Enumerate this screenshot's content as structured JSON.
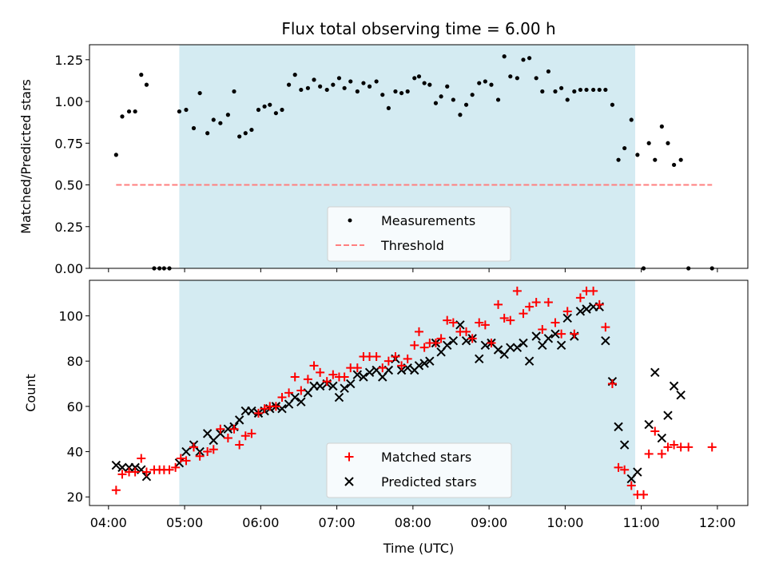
{
  "figure": {
    "title": "Flux total observing time = 6.00 h",
    "xlabel": "Time (UTC)",
    "shade_color": "#add8e6",
    "shade_range_hours": [
      4.93,
      10.92
    ]
  },
  "chart_data": [
    {
      "type": "scatter",
      "panel": "top",
      "ylabel": "Matched/Predicted stars",
      "xlim": [
        3.75,
        12.4
      ],
      "ylim": [
        0,
        1.34
      ],
      "yticks": [
        0.0,
        0.25,
        0.5,
        0.75,
        1.0,
        1.25
      ],
      "ytick_labels": [
        "0.00",
        "0.25",
        "0.50",
        "0.75",
        "1.00",
        "1.25"
      ],
      "legend_position": "lower-center",
      "series": [
        {
          "name": "Measurements",
          "color": "#000000",
          "marker": "dot",
          "x": [
            4.1,
            4.18,
            4.27,
            4.35,
            4.43,
            4.5,
            4.6,
            4.67,
            4.73,
            4.8,
            4.93,
            5.02,
            5.12,
            5.2,
            5.3,
            5.38,
            5.47,
            5.57,
            5.65,
            5.72,
            5.8,
            5.88,
            5.97,
            6.05,
            6.12,
            6.2,
            6.28,
            6.37,
            6.45,
            6.53,
            6.62,
            6.7,
            6.78,
            6.87,
            6.95,
            7.03,
            7.1,
            7.18,
            7.27,
            7.35,
            7.43,
            7.52,
            7.6,
            7.68,
            7.77,
            7.85,
            7.93,
            8.02,
            8.08,
            8.15,
            8.22,
            8.3,
            8.37,
            8.45,
            8.53,
            8.62,
            8.7,
            8.78,
            8.87,
            8.95,
            9.03,
            9.12,
            9.2,
            9.28,
            9.37,
            9.45,
            9.53,
            9.62,
            9.7,
            9.78,
            9.87,
            9.95,
            10.03,
            10.12,
            10.2,
            10.28,
            10.37,
            10.45,
            10.53,
            10.62,
            10.7,
            10.78,
            10.87,
            10.95,
            11.03,
            11.1,
            11.18,
            11.27,
            11.35,
            11.43,
            11.52,
            11.62,
            11.93
          ],
          "y": [
            0.68,
            0.91,
            0.94,
            0.94,
            1.16,
            1.1,
            0.0,
            0.0,
            0.0,
            0.0,
            0.94,
            0.95,
            0.84,
            1.05,
            0.81,
            0.89,
            0.87,
            0.92,
            1.06,
            0.79,
            0.81,
            0.83,
            0.95,
            0.97,
            0.98,
            0.93,
            0.95,
            1.1,
            1.16,
            1.07,
            1.08,
            1.13,
            1.09,
            1.07,
            1.1,
            1.14,
            1.08,
            1.12,
            1.06,
            1.11,
            1.09,
            1.12,
            1.04,
            0.96,
            1.06,
            1.05,
            1.06,
            1.14,
            1.15,
            1.11,
            1.1,
            0.99,
            1.03,
            1.09,
            1.01,
            0.92,
            0.98,
            1.04,
            1.11,
            1.12,
            1.1,
            1.01,
            1.27,
            1.15,
            1.14,
            1.25,
            1.26,
            1.14,
            1.06,
            1.18,
            1.06,
            1.08,
            1.01,
            1.06,
            1.07,
            1.07,
            1.07,
            1.07,
            1.07,
            0.98,
            0.65,
            0.72,
            0.89,
            0.68,
            0.0,
            0.75,
            0.65,
            0.85,
            0.75,
            0.62,
            0.65,
            0.0,
            0.0
          ]
        },
        {
          "name": "Threshold",
          "color": "#ff7f7f",
          "style": "dashed",
          "x": [
            4.1,
            11.93
          ],
          "y": [
            0.5,
            0.5
          ]
        }
      ]
    },
    {
      "type": "scatter",
      "panel": "bottom",
      "ylabel": "Count",
      "xlim": [
        3.75,
        12.4
      ],
      "ylim": [
        16.2,
        115.7
      ],
      "yticks": [
        20,
        40,
        60,
        80,
        100
      ],
      "ytick_labels": [
        "20",
        "40",
        "60",
        "80",
        "100"
      ],
      "xticks": [
        4,
        5,
        6,
        7,
        8,
        9,
        10,
        11,
        12
      ],
      "xtick_labels": [
        "04:00",
        "05:00",
        "06:00",
        "07:00",
        "08:00",
        "09:00",
        "10:00",
        "11:00",
        "12:00"
      ],
      "legend_position": "lower-center",
      "series": [
        {
          "name": "Matched stars",
          "color": "#ff0000",
          "marker": "plus",
          "x": [
            4.1,
            4.18,
            4.27,
            4.35,
            4.43,
            4.5,
            4.6,
            4.67,
            4.73,
            4.8,
            4.88,
            4.95,
            5.02,
            5.12,
            5.2,
            5.3,
            5.38,
            5.47,
            5.57,
            5.65,
            5.72,
            5.8,
            5.88,
            5.97,
            6.05,
            6.12,
            6.2,
            6.28,
            6.37,
            6.45,
            6.53,
            6.62,
            6.7,
            6.78,
            6.87,
            6.95,
            7.03,
            7.1,
            7.18,
            7.27,
            7.35,
            7.43,
            7.52,
            7.6,
            7.68,
            7.77,
            7.85,
            7.93,
            8.02,
            8.08,
            8.15,
            8.22,
            8.3,
            8.37,
            8.45,
            8.53,
            8.62,
            8.7,
            8.78,
            8.87,
            8.95,
            9.03,
            9.12,
            9.2,
            9.28,
            9.37,
            9.45,
            9.53,
            9.62,
            9.7,
            9.78,
            9.87,
            9.95,
            10.03,
            10.12,
            10.2,
            10.28,
            10.37,
            10.45,
            10.53,
            10.62,
            10.7,
            10.78,
            10.87,
            10.95,
            11.03,
            11.1,
            11.18,
            11.27,
            11.35,
            11.43,
            11.52,
            11.62,
            11.93
          ],
          "y": [
            23,
            30,
            31,
            31,
            37,
            31,
            32,
            32,
            32,
            32,
            33,
            37,
            36,
            42,
            38,
            40,
            41,
            50,
            46,
            50,
            43,
            47,
            48,
            57,
            59,
            60,
            60,
            64,
            66,
            73,
            67,
            72,
            78,
            75,
            71,
            74,
            73,
            73,
            77,
            77,
            82,
            82,
            82,
            77,
            80,
            82,
            78,
            81,
            87,
            93,
            86,
            88,
            88,
            90,
            98,
            97,
            93,
            93,
            90,
            97,
            96,
            88,
            105,
            99,
            98,
            111,
            101,
            104,
            106,
            94,
            106,
            97,
            92,
            102,
            92,
            108,
            111,
            111,
            105,
            95,
            70,
            33,
            32,
            25,
            21,
            21,
            39,
            49,
            39,
            42,
            43,
            42,
            42,
            42
          ]
        },
        {
          "name": "Predicted stars",
          "color": "#000000",
          "marker": "x",
          "x": [
            4.1,
            4.18,
            4.27,
            4.35,
            4.43,
            4.5,
            4.93,
            5.02,
            5.12,
            5.2,
            5.3,
            5.38,
            5.47,
            5.57,
            5.65,
            5.72,
            5.8,
            5.88,
            5.97,
            6.05,
            6.12,
            6.2,
            6.28,
            6.37,
            6.45,
            6.53,
            6.62,
            6.7,
            6.78,
            6.87,
            6.95,
            7.03,
            7.1,
            7.18,
            7.27,
            7.35,
            7.43,
            7.52,
            7.6,
            7.68,
            7.77,
            7.85,
            7.93,
            8.02,
            8.08,
            8.15,
            8.22,
            8.3,
            8.37,
            8.45,
            8.53,
            8.62,
            8.7,
            8.78,
            8.87,
            8.95,
            9.03,
            9.12,
            9.2,
            9.28,
            9.37,
            9.45,
            9.53,
            9.62,
            9.7,
            9.78,
            9.87,
            9.95,
            10.03,
            10.12,
            10.2,
            10.28,
            10.37,
            10.45,
            10.53,
            10.62,
            10.7,
            10.78,
            10.87,
            10.95,
            11.1,
            11.18,
            11.27,
            11.35,
            11.43,
            11.52
          ],
          "y": [
            34,
            33,
            33,
            33,
            32,
            29,
            35,
            40,
            43,
            40,
            48,
            45,
            48,
            50,
            51,
            54,
            58,
            58,
            57,
            58,
            59,
            60,
            59,
            61,
            64,
            62,
            66,
            69,
            69,
            70,
            69,
            64,
            68,
            70,
            74,
            73,
            75,
            76,
            73,
            76,
            81,
            76,
            77,
            76,
            78,
            79,
            80,
            88,
            84,
            87,
            89,
            96,
            89,
            90,
            81,
            87,
            88,
            85,
            83,
            86,
            86,
            88,
            80,
            91,
            87,
            90,
            92,
            87,
            99,
            91,
            102,
            103,
            104,
            104,
            89,
            71,
            51,
            43,
            28,
            31,
            52,
            75,
            46,
            56,
            69,
            65
          ]
        }
      ]
    }
  ]
}
